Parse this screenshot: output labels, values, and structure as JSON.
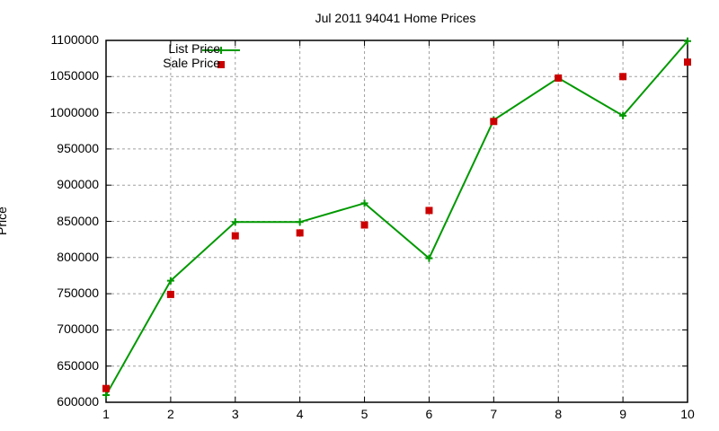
{
  "chart_data": {
    "type": "line",
    "title": "Jul 2011 94041 Home Prices",
    "xlabel": "",
    "ylabel": "Price",
    "x": [
      1,
      2,
      3,
      4,
      5,
      6,
      7,
      8,
      9,
      10
    ],
    "xlim": [
      1,
      10
    ],
    "ylim": [
      600000,
      1100000
    ],
    "yticks": [
      "600000",
      "650000",
      "700000",
      "750000",
      "800000",
      "850000",
      "900000",
      "950000",
      "1000000",
      "1050000",
      "1100000"
    ],
    "xticks": [
      "1",
      "2",
      "3",
      "4",
      "5",
      "6",
      "7",
      "8",
      "9",
      "10"
    ],
    "grid": true,
    "legend_position": "top-left",
    "series": [
      {
        "name": "List Price",
        "style": "line+cross",
        "color": "#009900",
        "values": [
          610000,
          768000,
          849000,
          849000,
          875000,
          799000,
          990000,
          1048000,
          996000,
          1099000
        ]
      },
      {
        "name": "Sale Price",
        "style": "square-markers",
        "color": "#cc0000",
        "values": [
          619000,
          749000,
          830000,
          834000,
          845000,
          865000,
          988000,
          1048000,
          1050000,
          1070000
        ]
      }
    ]
  }
}
